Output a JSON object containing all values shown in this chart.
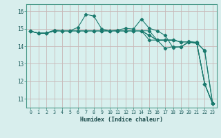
{
  "xlabel": "Humidex (Indice chaleur)",
  "ylabel": "",
  "bg_color": "#d8eeed",
  "plot_bg_color": "#d8f0ee",
  "grid_color": "#c8b8b8",
  "line_color": "#1a7a6e",
  "spine_color": "#4a9a8a",
  "xlim": [
    -0.5,
    23.5
  ],
  "ylim": [
    10.5,
    16.4
  ],
  "yticks": [
    11,
    12,
    13,
    14,
    15,
    16
  ],
  "xticks": [
    0,
    1,
    2,
    3,
    4,
    5,
    6,
    7,
    8,
    9,
    10,
    11,
    12,
    13,
    14,
    15,
    16,
    17,
    18,
    19,
    20,
    21,
    22,
    23
  ],
  "series": [
    [
      14.85,
      14.75,
      14.75,
      14.92,
      14.88,
      14.88,
      15.08,
      15.82,
      15.72,
      14.98,
      14.88,
      14.92,
      15.02,
      14.98,
      15.55,
      15.02,
      14.88,
      14.62,
      13.92,
      13.98,
      14.22,
      14.18,
      13.75,
      10.72
    ],
    [
      14.85,
      14.75,
      14.75,
      14.88,
      14.88,
      14.88,
      14.88,
      14.88,
      14.88,
      14.88,
      14.88,
      14.88,
      14.88,
      14.88,
      14.88,
      14.88,
      14.35,
      14.35,
      14.35,
      14.25,
      14.25,
      14.18,
      11.85,
      10.72
    ],
    [
      14.85,
      14.75,
      14.75,
      14.88,
      14.88,
      14.88,
      14.88,
      14.88,
      14.88,
      14.88,
      14.88,
      14.88,
      14.88,
      14.88,
      14.88,
      14.62,
      14.35,
      14.35,
      14.35,
      14.25,
      14.25,
      14.18,
      11.85,
      10.72
    ],
    [
      14.85,
      14.75,
      14.75,
      14.88,
      14.88,
      14.88,
      14.88,
      14.88,
      14.88,
      14.88,
      14.88,
      14.88,
      14.88,
      14.88,
      14.88,
      14.62,
      14.35,
      14.35,
      14.35,
      14.25,
      14.25,
      14.18,
      11.85,
      10.72
    ],
    [
      14.85,
      14.75,
      14.75,
      14.88,
      14.88,
      14.88,
      14.88,
      14.88,
      14.88,
      14.88,
      14.88,
      14.88,
      14.88,
      14.88,
      14.88,
      14.35,
      14.35,
      13.88,
      13.98,
      13.95,
      14.28,
      14.22,
      13.72,
      10.72
    ]
  ]
}
